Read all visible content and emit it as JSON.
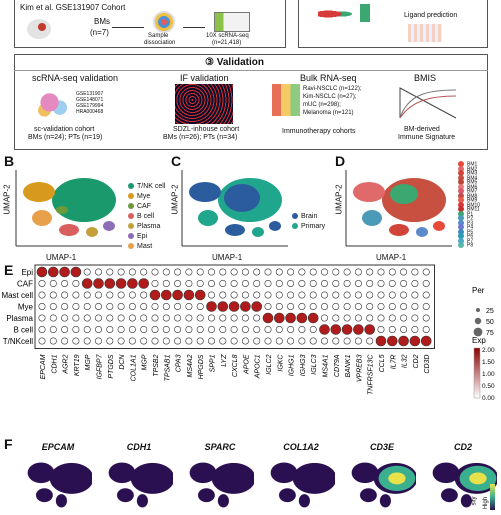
{
  "top": {
    "cohort_title": "Kim et al. GSE131907 Cohort",
    "bms_label": "BMs",
    "bms_n": "(n=7)",
    "sample_label": "Sample",
    "sample_label2": "dissociation",
    "seq_label": "10X scRNA-seq",
    "seq_n": "(n=21,418)",
    "ligand_label": "Ligand prediction"
  },
  "validation": {
    "header": "③ Validation",
    "sc": {
      "title": "scRNA-seq validation",
      "ids": [
        "GSE131907",
        "GSE148071",
        "GSE179994",
        "HRA000468"
      ],
      "cohort": "sc-validation cohort",
      "counts": "BMs (n=24); PTs (n=19)"
    },
    "if": {
      "title": "IF validation",
      "cohort": "SDZL-inhouse cohort",
      "counts": "BMs (n=26); PTs (n=34)"
    },
    "bulk": {
      "title": "Bulk RNA-seq",
      "items": [
        "Ravi-NSCLC (n=122);",
        "Kim-NSCLC (n=27);",
        "mUC (n=298);",
        "Melanoma (n=121)"
      ],
      "caption": "Immunotherapy cohorts"
    },
    "bmis": {
      "title": "BMIS",
      "caption1": "BM-derived",
      "caption2": "Immune Signature"
    }
  },
  "panels": {
    "B": {
      "letter": "B",
      "ylabel": "UMAP-2",
      "xlabel": "UMAP-1",
      "legend": [
        {
          "label": "T/NK cell",
          "color": "#1a9a6c"
        },
        {
          "label": "Mye",
          "color": "#d89a1e"
        },
        {
          "label": "CAF",
          "color": "#6a9a3a"
        },
        {
          "label": "B cell",
          "color": "#d95f5f"
        },
        {
          "label": "Plasma",
          "color": "#c4a03a"
        },
        {
          "label": "Epi",
          "color": "#8e6db8"
        },
        {
          "label": "Mast",
          "color": "#e8a04a"
        }
      ]
    },
    "C": {
      "letter": "C",
      "ylabel": "UMAP-2",
      "xlabel": "UMAP-1",
      "legend": [
        {
          "label": "Brain",
          "color": "#2b5c9e"
        },
        {
          "label": "Primary",
          "color": "#20a68c"
        }
      ]
    },
    "D": {
      "letter": "D",
      "ylabel": "UMAP-2",
      "xlabel": "UMAP-1",
      "legend": [
        {
          "label": "BM1",
          "color": "#e84a3a"
        },
        {
          "label": "BM2",
          "color": "#e06a6a"
        },
        {
          "label": "BM3",
          "color": "#d0443a"
        },
        {
          "label": "BM4",
          "color": "#c85040"
        },
        {
          "label": "BM5",
          "color": "#b8483a"
        },
        {
          "label": "BM6",
          "color": "#e77b7b"
        },
        {
          "label": "BM7",
          "color": "#d85a6a"
        },
        {
          "label": "BM8",
          "color": "#c44a4a"
        },
        {
          "label": "BM9",
          "color": "#e85a4a"
        },
        {
          "label": "BM10",
          "color": "#d83a3a"
        },
        {
          "label": "BM11",
          "color": "#c43030"
        },
        {
          "label": "P1",
          "color": "#3aa870"
        },
        {
          "label": "P2",
          "color": "#4a9ab8"
        },
        {
          "label": "P3",
          "color": "#5a8ac8"
        },
        {
          "label": "P4",
          "color": "#6a7ad0"
        },
        {
          "label": "P5",
          "color": "#3a8ac0"
        },
        {
          "label": "P6",
          "color": "#2a9ab0"
        },
        {
          "label": "P7",
          "color": "#4aa8c8"
        },
        {
          "label": "P8",
          "color": "#5ab8a8"
        }
      ]
    }
  },
  "panelE": {
    "letter": "E",
    "size_title": "Per",
    "size_values": [
      "25",
      "50",
      "75"
    ],
    "color_title": "Exp",
    "color_values": [
      "2.00",
      "1.50",
      "1.00",
      "0.50",
      "0.00"
    ],
    "cell_types": [
      "Epi",
      "CAF",
      "Mast cell",
      "Mye",
      "Plasma",
      "B cell",
      "T/NKcell"
    ],
    "genes": [
      "EPCAM",
      "CDH1",
      "AGR2",
      "KRT19",
      "MGP",
      "IGFBP7",
      "PTGDS",
      "DCN",
      "COL1A1",
      "MGP",
      "TPSB2",
      "TPSAB1",
      "CPA3",
      "MS4A2",
      "HPGDS",
      "SPP1",
      "LYZ",
      "CXCL8",
      "APOE",
      "APOC1",
      "IGLC2",
      "IGKC",
      "IGHG1",
      "IGHG3",
      "IGLC3",
      "MS4A1",
      "CD79A",
      "BANK1",
      "VPREB3",
      "TNFRSF13C",
      "CCL5",
      "IL7R",
      "IL32",
      "CD2",
      "CD3D"
    ],
    "groups": [
      [
        0,
        3
      ],
      [
        4,
        9
      ],
      [
        10,
        14
      ],
      [
        15,
        19
      ],
      [
        20,
        24
      ],
      [
        25,
        29
      ],
      [
        30,
        34
      ]
    ]
  },
  "panelF": {
    "letter": "F",
    "genes": [
      "EPCAM",
      "CDH1",
      "SPARC",
      "COL1A2",
      "CD3E",
      "CD2"
    ],
    "cbar_high": "High",
    "cbar_title": "sity"
  }
}
